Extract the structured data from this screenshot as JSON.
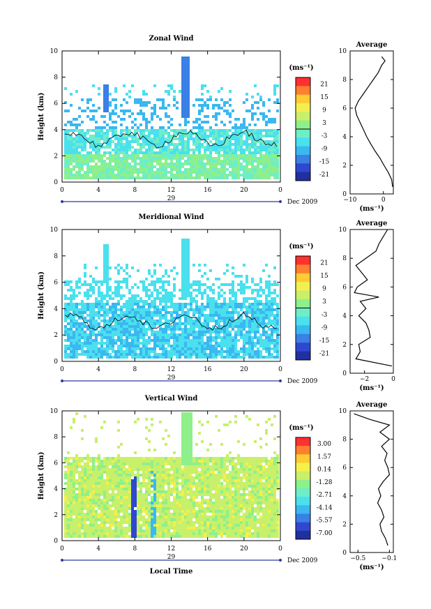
{
  "chart_data": [
    {
      "type": "heatmap",
      "title": "Zonal Wind",
      "xlabel": "",
      "ylabel": "Height (km)",
      "xlim": [
        0,
        24
      ],
      "ylim": [
        0,
        10
      ],
      "x_ticks": [
        "0",
        "4",
        "8",
        "12",
        "16",
        "20",
        "0"
      ],
      "y_ticks": [
        "0",
        "2",
        "4",
        "6",
        "8",
        "10"
      ],
      "date_day": "29",
      "date_month": "Dec 2009",
      "colorbar": {
        "unit": "(ms⁻¹)",
        "ticks": [
          "21",
          "15",
          "9",
          "3",
          "-3",
          "-9",
          "-15",
          "-21"
        ],
        "zero_line_value": 0
      },
      "average": {
        "title": "Average",
        "xlabel": "(ms⁻¹)",
        "x_ticks": [
          "−10",
          "0"
        ],
        "xlim": [
          -10,
          3
        ],
        "ylim": [
          0,
          10
        ],
        "y_ticks": [
          "0",
          "2",
          "4",
          "6",
          "8",
          "10"
        ],
        "profile": [
          [
            2.8,
            0.5
          ],
          [
            2.5,
            1.0
          ],
          [
            1.5,
            1.5
          ],
          [
            0.2,
            2.0
          ],
          [
            -1.0,
            2.5
          ],
          [
            -2.5,
            3.0
          ],
          [
            -3.8,
            3.5
          ],
          [
            -5.0,
            4.0
          ],
          [
            -6.0,
            4.5
          ],
          [
            -7.0,
            5.0
          ],
          [
            -8.0,
            5.5
          ],
          [
            -8.5,
            6.0
          ],
          [
            -7.5,
            6.5
          ],
          [
            -6.0,
            7.0
          ],
          [
            -4.5,
            7.5
          ],
          [
            -3.0,
            8.0
          ],
          [
            -1.5,
            8.5
          ],
          [
            -0.5,
            9.0
          ],
          [
            0.5,
            9.3
          ],
          [
            -0.5,
            9.6
          ]
        ]
      }
    },
    {
      "type": "heatmap",
      "title": "Meridional Wind",
      "xlabel": "",
      "ylabel": "Height (km)",
      "xlim": [
        0,
        24
      ],
      "ylim": [
        0,
        10
      ],
      "x_ticks": [
        "0",
        "4",
        "8",
        "12",
        "16",
        "20",
        "0"
      ],
      "y_ticks": [
        "0",
        "2",
        "4",
        "6",
        "8",
        "10"
      ],
      "date_day": "29",
      "date_month": "Dec 2009",
      "colorbar": {
        "unit": "(ms⁻¹)",
        "ticks": [
          "21",
          "15",
          "9",
          "3",
          "-3",
          "-9",
          "-15",
          "-21"
        ],
        "zero_line_value": 0
      },
      "average": {
        "title": "Average",
        "xlabel": "(ms⁻¹)",
        "x_ticks": [
          "−2",
          "0"
        ],
        "xlim": [
          -3,
          0
        ],
        "ylim": [
          0,
          10
        ],
        "y_ticks": [
          "0",
          "2",
          "4",
          "6",
          "8",
          "10"
        ],
        "profile": [
          [
            -0.1,
            0.5
          ],
          [
            -2.6,
            1.0
          ],
          [
            -2.3,
            1.5
          ],
          [
            -2.4,
            2.0
          ],
          [
            -1.6,
            2.5
          ],
          [
            -1.7,
            3.0
          ],
          [
            -1.9,
            3.5
          ],
          [
            -2.4,
            4.0
          ],
          [
            -1.9,
            4.5
          ],
          [
            -2.3,
            5.0
          ],
          [
            -1.0,
            5.3
          ],
          [
            -2.7,
            5.6
          ],
          [
            -2.5,
            6.0
          ],
          [
            -1.8,
            6.5
          ],
          [
            -2.2,
            7.0
          ],
          [
            -2.6,
            7.5
          ],
          [
            -1.9,
            8.0
          ],
          [
            -1.2,
            8.5
          ],
          [
            -1.0,
            9.0
          ],
          [
            -0.7,
            9.5
          ],
          [
            -0.4,
            10.0
          ]
        ]
      }
    },
    {
      "type": "heatmap",
      "title": "Vertical Wind",
      "xlabel": "Local Time",
      "ylabel": "Height (km)",
      "xlim": [
        0,
        24
      ],
      "ylim": [
        0,
        10
      ],
      "x_ticks": [
        "0",
        "4",
        "8",
        "12",
        "16",
        "20",
        "0"
      ],
      "y_ticks": [
        "0",
        "2",
        "4",
        "6",
        "8",
        "10"
      ],
      "date_day": "29",
      "date_month": "Dec 2009",
      "colorbar": {
        "unit": "(ms⁻¹)",
        "ticks": [
          "3.00",
          "1.57",
          "0.14",
          "-1.28",
          "-2.71",
          "-4.14",
          "-5.57",
          "-7.00"
        ]
      },
      "average": {
        "title": "Average",
        "xlabel": "(ms⁻¹)",
        "x_ticks": [
          "−0.5",
          "−0.1"
        ],
        "xlim": [
          -0.6,
          -0.05
        ],
        "ylim": [
          0,
          10
        ],
        "y_ticks": [
          "0",
          "2",
          "4",
          "6",
          "8",
          "10"
        ],
        "profile": [
          [
            -0.12,
            0.5
          ],
          [
            -0.15,
            1.0
          ],
          [
            -0.2,
            1.5
          ],
          [
            -0.22,
            2.0
          ],
          [
            -0.17,
            2.5
          ],
          [
            -0.2,
            3.0
          ],
          [
            -0.25,
            3.5
          ],
          [
            -0.21,
            4.0
          ],
          [
            -0.24,
            4.5
          ],
          [
            -0.18,
            5.0
          ],
          [
            -0.1,
            5.5
          ],
          [
            -0.12,
            6.0
          ],
          [
            -0.16,
            6.5
          ],
          [
            -0.13,
            7.0
          ],
          [
            -0.2,
            7.5
          ],
          [
            -0.1,
            8.0
          ],
          [
            -0.22,
            8.5
          ],
          [
            -0.1,
            9.0
          ],
          [
            -0.35,
            9.4
          ],
          [
            -0.55,
            9.8
          ]
        ]
      }
    }
  ],
  "colors": {
    "zonal_palette": [
      "#ff3030",
      "#ff7f30",
      "#ffcc33",
      "#f2f050",
      "#c8f06a",
      "#8ef08a",
      "#6eeec6",
      "#4ae0ee",
      "#3ab8f0",
      "#3a80e6",
      "#3048d0",
      "#2030a0"
    ],
    "vertical_palette": [
      "#ff3030",
      "#ff7f30",
      "#ffcc33",
      "#f5f04a",
      "#c8f06a",
      "#8ef08a",
      "#6eeec6",
      "#4ae0ee",
      "#3ab8f0",
      "#3a80e6",
      "#3048d0",
      "#2030a0"
    ]
  }
}
